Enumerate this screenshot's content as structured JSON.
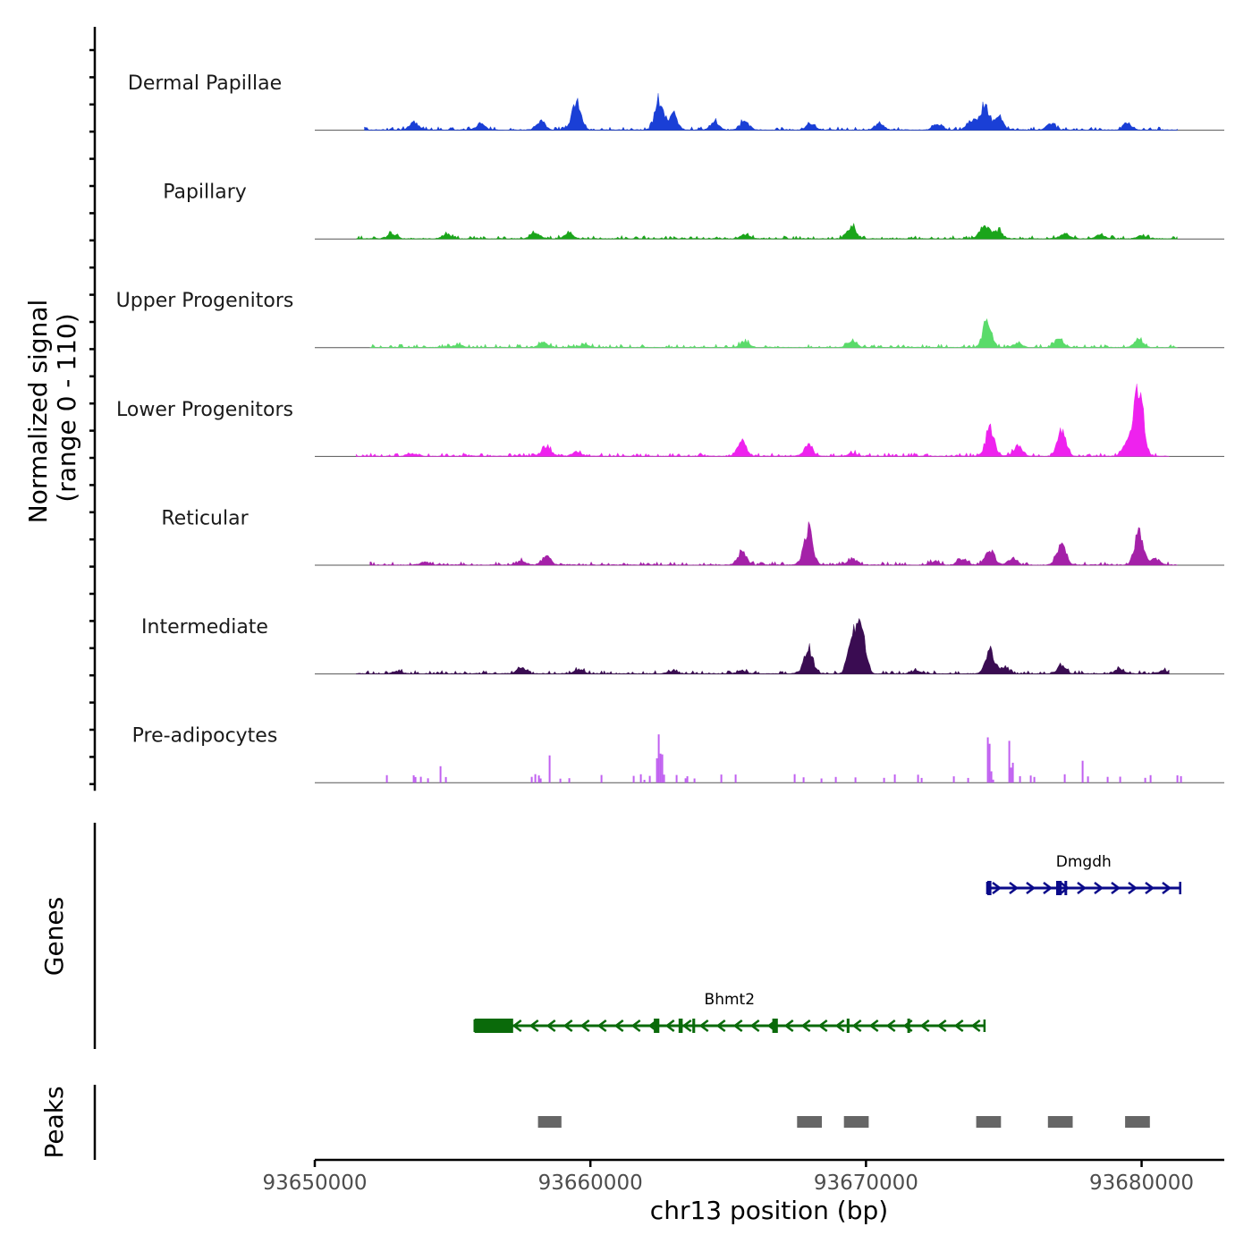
{
  "chart_data": {
    "type": "area",
    "title": "",
    "xlabel": "chr13 position (bp)",
    "ylabel": "Normalized signal\n(range 0 - 110)",
    "ylim": [
      0,
      110
    ],
    "xlim": [
      93650000,
      93683000
    ],
    "x_ticks": [
      93650000,
      93660000,
      93670000,
      93680000
    ],
    "tracks": [
      {
        "name": "Dermal Papillae",
        "color": "#1a3fd6",
        "range": [
          93651800,
          93681300
        ],
        "peaks": [
          [
            93653600,
            0.15
          ],
          [
            93656000,
            0.12
          ],
          [
            93658200,
            0.18
          ],
          [
            93659500,
            0.55
          ],
          [
            93662500,
            0.55
          ],
          [
            93663000,
            0.3
          ],
          [
            93664500,
            0.15
          ],
          [
            93665600,
            0.18
          ],
          [
            93668000,
            0.12
          ],
          [
            93670500,
            0.12
          ],
          [
            93672600,
            0.12
          ],
          [
            93673800,
            0.15
          ],
          [
            93674300,
            0.45
          ],
          [
            93674800,
            0.3
          ],
          [
            93676700,
            0.12
          ],
          [
            93679500,
            0.12
          ]
        ]
      },
      {
        "name": "Papillary",
        "color": "#1aa51a",
        "range": [
          93651500,
          93681300
        ],
        "peaks": [
          [
            93652800,
            0.1
          ],
          [
            93654800,
            0.1
          ],
          [
            93658000,
            0.12
          ],
          [
            93659200,
            0.1
          ],
          [
            93665600,
            0.08
          ],
          [
            93669500,
            0.22
          ],
          [
            93674300,
            0.3
          ],
          [
            93674800,
            0.15
          ],
          [
            93677200,
            0.1
          ],
          [
            93678500,
            0.08
          ],
          [
            93680000,
            0.06
          ]
        ]
      },
      {
        "name": "Upper Progenitors",
        "color": "#5adb6a",
        "range": [
          93652000,
          93681300
        ],
        "peaks": [
          [
            93655200,
            0.06
          ],
          [
            93658300,
            0.1
          ],
          [
            93659800,
            0.06
          ],
          [
            93665600,
            0.12
          ],
          [
            93669500,
            0.12
          ],
          [
            93674400,
            0.5
          ],
          [
            93675500,
            0.08
          ],
          [
            93677000,
            0.15
          ],
          [
            93679900,
            0.14
          ]
        ]
      },
      {
        "name": "Lower Progenitors",
        "color": "#ee22ee",
        "range": [
          93651500,
          93681000
        ],
        "peaks": [
          [
            93653500,
            0.05
          ],
          [
            93658400,
            0.2
          ],
          [
            93659500,
            0.08
          ],
          [
            93665500,
            0.3
          ],
          [
            93667900,
            0.2
          ],
          [
            93669500,
            0.06
          ],
          [
            93674500,
            0.55
          ],
          [
            93675500,
            0.2
          ],
          [
            93677100,
            0.45
          ],
          [
            93679900,
            1.45
          ],
          [
            93679500,
            0.3
          ]
        ]
      },
      {
        "name": "Reticular",
        "color": "#a421a8",
        "range": [
          93652000,
          93681300
        ],
        "peaks": [
          [
            93654000,
            0.06
          ],
          [
            93657500,
            0.08
          ],
          [
            93658400,
            0.15
          ],
          [
            93665500,
            0.25
          ],
          [
            93667900,
            0.7
          ],
          [
            93669500,
            0.12
          ],
          [
            93672500,
            0.08
          ],
          [
            93673500,
            0.12
          ],
          [
            93674500,
            0.3
          ],
          [
            93675300,
            0.12
          ],
          [
            93677100,
            0.4
          ],
          [
            93679900,
            0.6
          ],
          [
            93680500,
            0.12
          ]
        ]
      },
      {
        "name": "Intermediate",
        "color": "#3a0c52",
        "range": [
          93651500,
          93681000
        ],
        "peaks": [
          [
            93653000,
            0.05
          ],
          [
            93657500,
            0.12
          ],
          [
            93659600,
            0.08
          ],
          [
            93663000,
            0.06
          ],
          [
            93665500,
            0.06
          ],
          [
            93667900,
            0.5
          ],
          [
            93669500,
            0.6
          ],
          [
            93669800,
            0.85
          ],
          [
            93671800,
            0.06
          ],
          [
            93674500,
            0.45
          ],
          [
            93675000,
            0.12
          ],
          [
            93677100,
            0.15
          ],
          [
            93679200,
            0.1
          ],
          [
            93680800,
            0.06
          ]
        ]
      },
      {
        "name": "Pre-adipocytes",
        "color": "#c060f0",
        "sparse": true,
        "range": [
          93652000,
          93681500
        ],
        "peaks": [
          [
            93654500,
            0.4
          ],
          [
            93656300,
            0.3
          ],
          [
            93657300,
            0.25
          ],
          [
            93658500,
            0.55
          ],
          [
            93661800,
            0.2
          ],
          [
            93662500,
            0.9
          ],
          [
            93665000,
            0.08
          ],
          [
            93669300,
            0.3
          ],
          [
            93672500,
            0.45
          ],
          [
            93674400,
            0.75
          ],
          [
            93675200,
            0.5
          ],
          [
            93676000,
            0.25
          ],
          [
            93677800,
            0.25
          ],
          [
            93679800,
            0.25
          ]
        ]
      }
    ],
    "genes": [
      {
        "name": "Dmgdh",
        "strand": "+",
        "start": 93674400,
        "end": 93681400,
        "color": "#0a0a8a",
        "exons": [
          [
            93674400,
            93674550
          ],
          [
            93676900,
            93677100
          ],
          [
            93677200,
            93677280
          ]
        ]
      },
      {
        "name": "Bhmt2",
        "strand": "-",
        "start": 93655800,
        "end": 93674300,
        "color": "#0a6a0a",
        "exons": [
          [
            93655800,
            93657200
          ],
          [
            93662300,
            93662500
          ],
          [
            93663200,
            93663350
          ],
          [
            93663700,
            93663800
          ],
          [
            93666600,
            93666800
          ],
          [
            93669300,
            93669400
          ],
          [
            93671500,
            93671600
          ]
        ]
      }
    ],
    "peak_regions": [
      [
        93658100,
        93658950
      ],
      [
        93667500,
        93668400
      ],
      [
        93669200,
        93670100
      ],
      [
        93674000,
        93674900
      ],
      [
        93676600,
        93677500
      ],
      [
        93679400,
        93680300
      ]
    ],
    "panel_labels": {
      "genes": "Genes",
      "peaks": "Peaks"
    },
    "colors": {
      "axis": "#000000",
      "baseline": "#555555",
      "peak_box": "#666666"
    }
  }
}
